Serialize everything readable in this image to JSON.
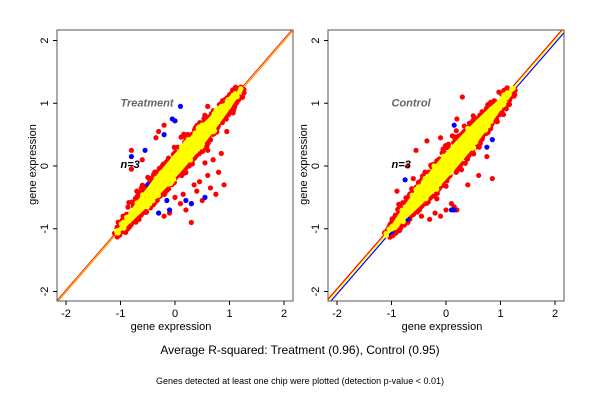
{
  "chart_data": [
    {
      "type": "scatter",
      "title": "Treatment",
      "annotation": "n=3",
      "xlabel": "gene expression",
      "ylabel": "gene expression",
      "xlim": [
        -2.2,
        2.2
      ],
      "ylim": [
        -2.15,
        2.15
      ],
      "xticks": [
        -2,
        -1,
        0,
        1,
        2
      ],
      "yticks": [
        -2,
        -1,
        0,
        1,
        2
      ],
      "reference_lines": [
        {
          "color": "#ff0000",
          "slope": 1,
          "intercept": 0.02
        },
        {
          "color": "#ffff00",
          "slope": 1,
          "intercept": 0
        },
        {
          "color": "#ff9933",
          "slope": 1,
          "intercept": -0.01
        }
      ],
      "point_colors": {
        "dense": "#ffff00",
        "outlier": "#ff0000",
        "extreme": "#0000ff"
      },
      "cloud": {
        "x_range": [
          -1.1,
          1.25
        ],
        "spread": 0.18
      },
      "outliers_red": [
        [
          -0.8,
          0.25
        ],
        [
          -0.35,
          0.45
        ],
        [
          -0.3,
          0.55
        ],
        [
          0.6,
          0.25
        ],
        [
          0.7,
          0.1
        ],
        [
          0.8,
          -0.1
        ],
        [
          0.9,
          -0.3
        ],
        [
          0.4,
          -0.4
        ],
        [
          0.5,
          -0.55
        ],
        [
          0.3,
          -0.6
        ],
        [
          0.15,
          -0.45
        ],
        [
          0.0,
          -0.5
        ],
        [
          -0.1,
          -0.75
        ],
        [
          0.3,
          -0.9
        ],
        [
          0.2,
          -0.7
        ],
        [
          0.1,
          -0.6
        ],
        [
          0.45,
          -0.25
        ],
        [
          0.6,
          -0.15
        ],
        [
          0.55,
          0.05
        ],
        [
          0.85,
          0.2
        ],
        [
          0.95,
          0.55
        ],
        [
          0.6,
          0.95
        ],
        [
          0.9,
          0.9
        ],
        [
          -0.5,
          -0.45
        ],
        [
          -0.4,
          -0.6
        ],
        [
          -0.3,
          -0.75
        ],
        [
          -0.2,
          -0.8
        ],
        [
          -0.7,
          -0.4
        ],
        [
          0.35,
          -0.3
        ],
        [
          0.65,
          -0.35
        ],
        [
          0.75,
          -0.45
        ],
        [
          -0.6,
          0.1
        ],
        [
          -0.8,
          -0.05
        ],
        [
          -0.2,
          0.65
        ],
        [
          0.05,
          0.3
        ]
      ],
      "outliers_blue": [
        [
          0.1,
          0.95
        ],
        [
          -0.05,
          0.75
        ],
        [
          0.0,
          0.72
        ],
        [
          -0.2,
          0.5
        ],
        [
          -0.55,
          0.25
        ],
        [
          -0.8,
          0.15
        ],
        [
          0.2,
          -0.55
        ],
        [
          0.3,
          -0.6
        ],
        [
          -0.15,
          -0.55
        ],
        [
          -0.3,
          -0.75
        ],
        [
          -0.1,
          -0.7
        ],
        [
          0.55,
          -0.5
        ],
        [
          -0.5,
          -0.3
        ]
      ]
    },
    {
      "type": "scatter",
      "title": "Control",
      "annotation": "n=3",
      "xlabel": "gene expression",
      "ylabel": "gene expression",
      "xlim": [
        -2.2,
        2.2
      ],
      "ylim": [
        -2.15,
        2.15
      ],
      "xticks": [
        -2,
        -1,
        0,
        1,
        2
      ],
      "yticks": [
        -2,
        -1,
        0,
        1,
        2
      ],
      "reference_lines": [
        {
          "color": "#ff0000",
          "slope": 1,
          "intercept": 0.04
        },
        {
          "color": "#ffff00",
          "slope": 1,
          "intercept": 0.01
        },
        {
          "color": "#0000ff",
          "slope": 1,
          "intercept": -0.04
        }
      ],
      "point_colors": {
        "dense": "#ffff00",
        "outlier": "#ff0000",
        "extreme": "#0000ff"
      },
      "cloud": {
        "x_range": [
          -1.1,
          1.25
        ],
        "spread": 0.2
      },
      "outliers_red": [
        [
          -0.35,
          0.4
        ],
        [
          -0.1,
          0.45
        ],
        [
          0.2,
          0.75
        ],
        [
          0.5,
          0.8
        ],
        [
          0.75,
          0.15
        ],
        [
          0.85,
          -0.2
        ],
        [
          0.6,
          -0.15
        ],
        [
          0.1,
          -0.6
        ],
        [
          0.15,
          -0.65
        ],
        [
          -0.1,
          -0.8
        ],
        [
          -0.3,
          -0.85
        ],
        [
          -0.45,
          -0.8
        ],
        [
          -0.7,
          -0.9
        ],
        [
          -0.2,
          -0.75
        ],
        [
          0.0,
          -0.7
        ],
        [
          0.2,
          -0.7
        ],
        [
          -0.55,
          0.25
        ],
        [
          -0.7,
          0.0
        ],
        [
          -0.9,
          -0.4
        ],
        [
          0.3,
          1.1
        ],
        [
          -0.6,
          -0.2
        ],
        [
          0.4,
          -0.3
        ]
      ],
      "outliers_blue": [
        [
          0.15,
          0.65
        ],
        [
          0.85,
          0.42
        ],
        [
          0.75,
          0.3
        ],
        [
          -0.75,
          -0.22
        ],
        [
          0.1,
          -0.7
        ],
        [
          0.15,
          -0.7
        ],
        [
          -1.0,
          -1.05
        ],
        [
          -1.05,
          -1.07
        ],
        [
          -0.7,
          -0.85
        ]
      ]
    }
  ],
  "footer": {
    "main_caption": "Average R-squared: Treatment (0.96), Control (0.95)",
    "sub_caption": "Genes detected at least one chip were plotted (detection p-value < 0.01)"
  }
}
